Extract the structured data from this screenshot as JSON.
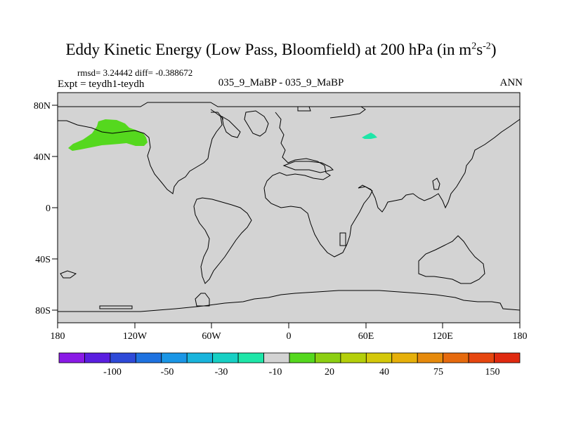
{
  "title": {
    "main": "Eddy Kinetic Energy (Low Pass, Bloomfield) at 200 hPa (in m",
    "sup1": "2",
    "mid": "s",
    "sup2": "-2",
    "end": ")"
  },
  "stats": "rmsd= 3.24442 diff= -0.388672",
  "experiment": "Expt = teydh1-teydh",
  "center_label": "035_9_MaBP - 035_9_MaBP",
  "season": "ANN",
  "map": {
    "lat_labels": [
      "80N",
      "40N",
      "0",
      "40S",
      "80S"
    ],
    "lon_labels": [
      "180",
      "120W",
      "60W",
      "0",
      "60E",
      "120E",
      "180"
    ],
    "land_color": "#d3d3d3",
    "coast_color": "#000000"
  },
  "colorbar": {
    "colors": [
      "#8a1ae6",
      "#5a1ee0",
      "#2e4ad8",
      "#1e72e0",
      "#1a96e6",
      "#19b4dc",
      "#17d0c4",
      "#1ee6a8",
      "#d3d3d3",
      "#55d81e",
      "#8ccf12",
      "#b4cf0a",
      "#d4c80a",
      "#e6b00a",
      "#e68a0c",
      "#e66a0e",
      "#e6460f",
      "#e02a10"
    ],
    "labels": [
      "-100",
      "-50",
      "-30",
      "-10",
      "20",
      "40",
      "75",
      "150"
    ]
  }
}
